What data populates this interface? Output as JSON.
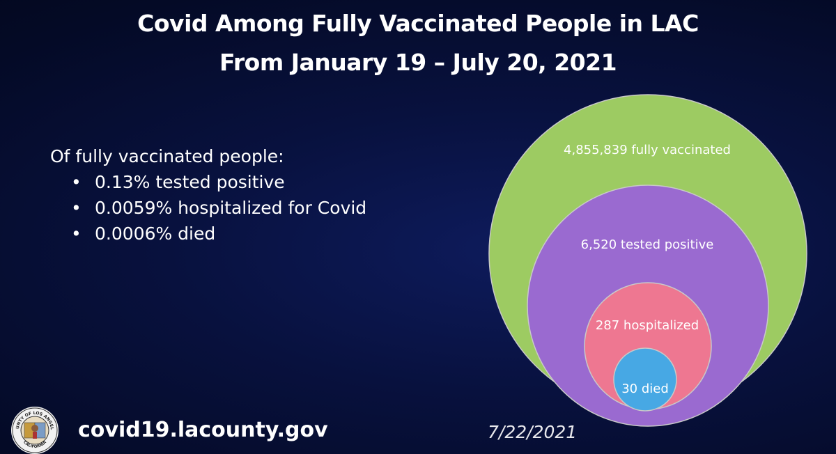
{
  "title": {
    "line1": "Covid Among Fully Vaccinated People in LAC",
    "line2": "From January 19 – July 20, 2021"
  },
  "summary": {
    "intro": "Of fully vaccinated people:",
    "bullets": [
      "0.13% tested positive",
      "0.0059% hospitalized for Covid",
      "0.0006% died"
    ]
  },
  "diagram": {
    "type": "nested-circles",
    "levels": [
      {
        "label": "4,855,839 fully vaccinated",
        "value": 4855839,
        "color": "#9dcb62"
      },
      {
        "label": "6,520 tested positive",
        "value": 6520,
        "color": "#9a6ad0"
      },
      {
        "label": "287 hospitalized",
        "value": 287,
        "color": "#ee7791"
      },
      {
        "label": "30 died",
        "value": 30,
        "color": "#47a8e4"
      }
    ]
  },
  "footer": {
    "seal_text_top": "COUNTY OF LOS ANGELES",
    "seal_text_bottom": "CALIFORNIA",
    "website": "covid19.lacounty.gov",
    "date": "7/22/2021"
  }
}
